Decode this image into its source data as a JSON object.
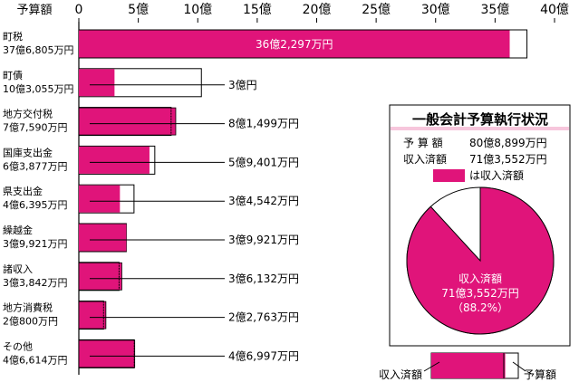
{
  "chart_data": {
    "type": "bar",
    "axis_label": "予算額",
    "xlim": [
      0,
      40
    ],
    "ticks": [
      {
        "value": 0,
        "label": "0"
      },
      {
        "value": 5,
        "label": "5億"
      },
      {
        "value": 10,
        "label": "10億"
      },
      {
        "value": 15,
        "label": "15億"
      },
      {
        "value": 20,
        "label": "20億"
      },
      {
        "value": 25,
        "label": "25億"
      },
      {
        "value": 30,
        "label": "30億"
      },
      {
        "value": 35,
        "label": "35億"
      },
      {
        "value": 40,
        "label": "40億"
      }
    ],
    "series_names": [
      "予算額",
      "収入済額"
    ],
    "rows": [
      {
        "category": "町税",
        "budget_label": "37億6,805万円",
        "budget": 37.6805,
        "received": 36.2297,
        "received_label": "36億2,297万円"
      },
      {
        "category": "町債",
        "budget_label": "10億3,055万円",
        "budget": 10.3055,
        "received": 3.0,
        "received_label": "3億円"
      },
      {
        "category": "地方交付税",
        "budget_label": "7億7,590万円",
        "budget": 7.759,
        "received": 8.1499,
        "received_label": "8億1,499万円"
      },
      {
        "category": "国庫支出金",
        "budget_label": "6億3,877万円",
        "budget": 6.3877,
        "received": 5.9401,
        "received_label": "5億9,401万円"
      },
      {
        "category": "県支出金",
        "budget_label": "4億6,395万円",
        "budget": 4.6395,
        "received": 3.4542,
        "received_label": "3億4,542万円"
      },
      {
        "category": "繰越金",
        "budget_label": "3億9,921万円",
        "budget": 3.9921,
        "received": 3.9921,
        "received_label": "3億9,921万円"
      },
      {
        "category": "諸収入",
        "budget_label": "3億3,842万円",
        "budget": 3.3842,
        "received": 3.6132,
        "received_label": "3億6,132万円"
      },
      {
        "category": "地方消費税",
        "budget_label": "2億800万円",
        "budget": 2.08,
        "received": 2.2763,
        "received_label": "2億2,763万円"
      },
      {
        "category": "その他",
        "budget_label": "4億6,614万円",
        "budget": 4.6614,
        "received": 4.6997,
        "received_label": "4億6,997万円"
      }
    ],
    "colors": {
      "received": "#e0147a",
      "budget": "#ffffff",
      "outline": "#000000",
      "panel_header": "#f7c6dc"
    }
  },
  "summary": {
    "title": "一般会計予算執行状況",
    "budget_label": "予 算 額",
    "budget_value": "80億8,899万円",
    "received_label": "収入済額",
    "received_value": "71億3,552万円",
    "legend_text": "は収入済額",
    "pie": {
      "received_fraction": 0.882,
      "label_line1": "収入済額",
      "label_line2": "71億3,552万円",
      "label_line3": "（88.2%）"
    }
  },
  "key": {
    "left_label": "収入済額",
    "right_label": "予算額",
    "received_fraction": 0.85
  }
}
